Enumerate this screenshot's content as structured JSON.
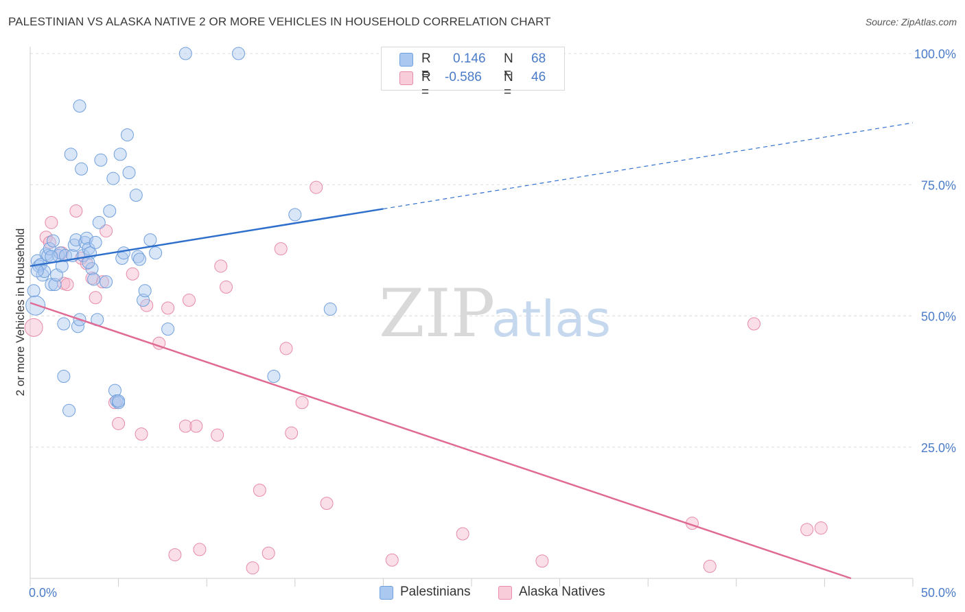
{
  "title": "PALESTINIAN VS ALASKA NATIVE 2 OR MORE VEHICLES IN HOUSEHOLD CORRELATION CHART",
  "source": "Source: ZipAtlas.com",
  "watermark": {
    "zip": "ZIP",
    "atlas": "atlas"
  },
  "legend": {
    "rows": [
      {
        "r_label": "R =",
        "r_value": "0.146",
        "n_label": "N =",
        "n_value": "68"
      },
      {
        "r_label": "R =",
        "r_value": "-0.586",
        "n_label": "N =",
        "n_value": "46"
      }
    ]
  },
  "bottom_legend": [
    "Palestinians",
    "Alaska Natives"
  ],
  "colors": {
    "blue_fill": "#aac8f0",
    "blue_stroke": "#6f9fdc",
    "blue_line": "#2f6fcc",
    "pink_fill": "#f4b8cc",
    "pink_stroke": "#e68aa8",
    "pink_line": "#e06a94",
    "tick": "#4a7bc8",
    "grid": "#dddddd"
  },
  "chart_data": {
    "type": "scatter",
    "title": "PALESTINIAN VS ALASKA NATIVE 2 OR MORE VEHICLES IN HOUSEHOLD CORRELATION CHART",
    "xlabel": "",
    "ylabel": "2 or more Vehicles in Household",
    "xlim": [
      0,
      50
    ],
    "ylim": [
      0,
      100
    ],
    "x_tick_labels": [
      "0.0%",
      "50.0%"
    ],
    "y_ticks": [
      25,
      50,
      75,
      100
    ],
    "y_tick_labels": [
      "25.0%",
      "50.0%",
      "75.0%",
      "100.0%"
    ],
    "grid": true,
    "legend_position": "top-center",
    "series": [
      {
        "name": "Palestinians",
        "r": 0.146,
        "n": 68,
        "trend": {
          "x0": 0,
          "y0": 59.5,
          "x1": 20,
          "y1": 70.4,
          "dashed_to_x": 50,
          "dashed_to_y": 86.8
        },
        "points": [
          [
            0.2,
            54.8
          ],
          [
            0.3,
            52.0
          ],
          [
            0.4,
            60.5
          ],
          [
            0.5,
            59.5
          ],
          [
            0.6,
            59.8
          ],
          [
            0.7,
            57.8
          ],
          [
            0.8,
            58.5
          ],
          [
            0.9,
            61.8
          ],
          [
            1.0,
            61.5
          ],
          [
            1.1,
            62.8
          ],
          [
            1.2,
            56.0
          ],
          [
            1.3,
            64.3
          ],
          [
            1.4,
            56.0
          ],
          [
            1.5,
            57.8
          ],
          [
            1.6,
            61.5
          ],
          [
            1.7,
            62.0
          ],
          [
            1.8,
            59.5
          ],
          [
            1.9,
            48.5
          ],
          [
            1.9,
            38.5
          ],
          [
            2.0,
            61.5
          ],
          [
            2.2,
            32.0
          ],
          [
            2.3,
            80.8
          ],
          [
            2.4,
            61.5
          ],
          [
            2.5,
            63.5
          ],
          [
            2.6,
            64.5
          ],
          [
            2.7,
            48.0
          ],
          [
            2.8,
            49.3
          ],
          [
            2.8,
            90.0
          ],
          [
            2.9,
            78.0
          ],
          [
            3.0,
            61.5
          ],
          [
            3.1,
            64.0
          ],
          [
            3.2,
            64.8
          ],
          [
            3.3,
            62.8
          ],
          [
            3.4,
            62.0
          ],
          [
            3.5,
            59.0
          ],
          [
            3.6,
            57.0
          ],
          [
            3.7,
            64.0
          ],
          [
            3.8,
            49.3
          ],
          [
            3.9,
            67.8
          ],
          [
            4.0,
            79.7
          ],
          [
            4.3,
            56.5
          ],
          [
            4.5,
            70.0
          ],
          [
            4.7,
            76.2
          ],
          [
            4.8,
            35.8
          ],
          [
            4.9,
            33.8
          ],
          [
            5.0,
            33.5
          ],
          [
            5.0,
            33.8
          ],
          [
            5.1,
            80.8
          ],
          [
            5.2,
            61.0
          ],
          [
            5.3,
            62.0
          ],
          [
            5.5,
            84.5
          ],
          [
            5.6,
            77.3
          ],
          [
            6.0,
            73.0
          ],
          [
            6.1,
            61.3
          ],
          [
            6.2,
            60.8
          ],
          [
            6.4,
            53.0
          ],
          [
            6.5,
            54.8
          ],
          [
            6.8,
            64.5
          ],
          [
            7.1,
            62.0
          ],
          [
            7.8,
            47.5
          ],
          [
            8.8,
            100.0
          ],
          [
            11.8,
            100.0
          ],
          [
            13.8,
            38.5
          ],
          [
            15.0,
            69.3
          ],
          [
            17.0,
            51.3
          ],
          [
            0.4,
            58.6
          ],
          [
            1.2,
            61.3
          ],
          [
            3.3,
            60.2
          ]
        ]
      },
      {
        "name": "Alaska Natives",
        "r": -0.586,
        "n": 46,
        "trend": {
          "x0": 0,
          "y0": 52.5,
          "x1": 46.5,
          "y1": 0
        },
        "points": [
          [
            0.2,
            47.8
          ],
          [
            0.9,
            65.0
          ],
          [
            1.1,
            64.0
          ],
          [
            1.2,
            67.8
          ],
          [
            1.8,
            62.0
          ],
          [
            1.9,
            56.2
          ],
          [
            2.1,
            56.0
          ],
          [
            2.6,
            70.0
          ],
          [
            2.9,
            61.0
          ],
          [
            3.2,
            60.0
          ],
          [
            3.5,
            57.2
          ],
          [
            3.7,
            53.5
          ],
          [
            4.1,
            56.5
          ],
          [
            4.3,
            66.2
          ],
          [
            4.8,
            33.5
          ],
          [
            5.0,
            29.5
          ],
          [
            5.8,
            58.0
          ],
          [
            6.3,
            27.5
          ],
          [
            6.6,
            52.0
          ],
          [
            7.3,
            44.8
          ],
          [
            7.8,
            51.5
          ],
          [
            8.2,
            4.5
          ],
          [
            8.8,
            29.0
          ],
          [
            9.0,
            53.0
          ],
          [
            9.4,
            29.0
          ],
          [
            9.6,
            5.5
          ],
          [
            10.6,
            27.3
          ],
          [
            10.8,
            59.5
          ],
          [
            11.1,
            55.5
          ],
          [
            12.6,
            2.0
          ],
          [
            13.0,
            16.8
          ],
          [
            13.5,
            4.8
          ],
          [
            14.2,
            62.8
          ],
          [
            14.5,
            43.8
          ],
          [
            14.8,
            27.7
          ],
          [
            15.4,
            33.5
          ],
          [
            16.2,
            74.5
          ],
          [
            16.8,
            14.3
          ],
          [
            20.5,
            3.5
          ],
          [
            24.5,
            8.5
          ],
          [
            29.0,
            3.3
          ],
          [
            37.5,
            10.5
          ],
          [
            38.5,
            2.3
          ],
          [
            41.0,
            48.5
          ],
          [
            44.0,
            9.3
          ],
          [
            44.8,
            9.6
          ]
        ]
      }
    ]
  }
}
